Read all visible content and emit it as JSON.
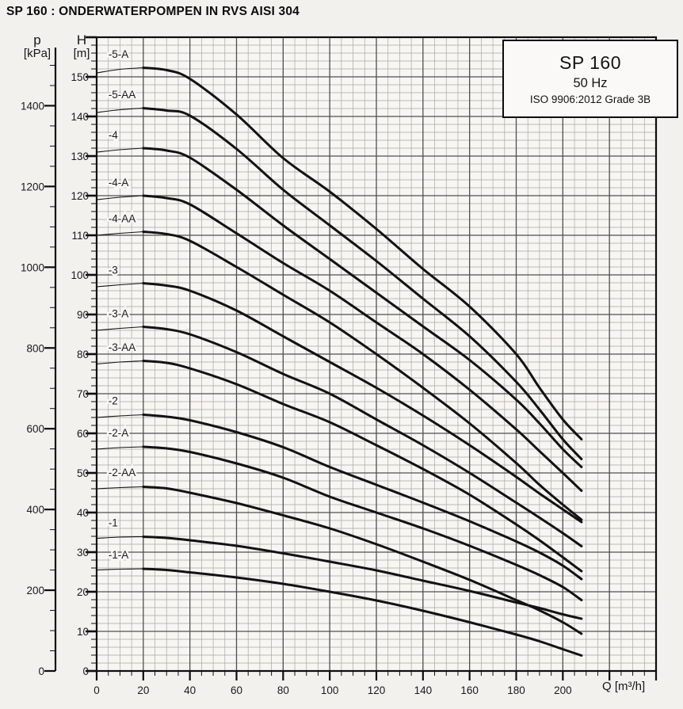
{
  "page": {
    "title": "SP 160 : ONDERWATERPOMPEN IN RVS AISI 304"
  },
  "info_box": {
    "model": "SP 160",
    "frequency": "50 Hz",
    "standard": "ISO 9906:2012 Grade 3B"
  },
  "colors": {
    "curve": "#121212",
    "grid_major": "#4f4f4f",
    "grid_minor": "#a9a7a3",
    "axis": "#0d0d0d",
    "tick_text": "#1a1a1a",
    "plot_bg": "#f7f6f3"
  },
  "chart_data": {
    "type": "line",
    "title": "SP 160 : ONDERWATERPOMPEN IN RVS AISI 304",
    "xlabel": "Q [m³/h]",
    "x_axis": {
      "min": 0,
      "max": 240,
      "major": 20,
      "minor": 5,
      "tick_label_max": 200,
      "label": "Q [m³/h]"
    },
    "h_axis": {
      "title_lines": [
        "H",
        "[m]"
      ],
      "min": 0,
      "max": 160,
      "major": 10,
      "minor": 2,
      "tick_label_max": 150
    },
    "p_axis": {
      "title_lines": [
        "p",
        "[kPa]"
      ],
      "kpa_per_m": 9.81,
      "major": 200,
      "minor": 50,
      "tick_label_max": 1400
    },
    "legend": [
      "SP 160",
      "50 Hz",
      "ISO 9906:2012 Grade 3B"
    ],
    "grid": "on",
    "series": [
      {
        "name": "-5-A",
        "label_at": [
          5,
          154.8
        ],
        "points": [
          [
            0,
            151
          ],
          [
            10,
            151.9
          ],
          [
            20,
            152.3
          ],
          [
            30,
            151.7
          ],
          [
            40,
            149.5
          ],
          [
            60,
            140.5
          ],
          [
            80,
            129.5
          ],
          [
            100,
            121
          ],
          [
            120,
            111.6
          ],
          [
            140,
            101.5
          ],
          [
            160,
            92
          ],
          [
            180,
            80
          ],
          [
            190,
            71.5
          ],
          [
            200,
            63.5
          ],
          [
            208,
            58.5
          ]
        ]
      },
      {
        "name": "-5-AA",
        "label_at": [
          5,
          144.6
        ],
        "points": [
          [
            0,
            141
          ],
          [
            10,
            141.7
          ],
          [
            20,
            142.1
          ],
          [
            30,
            141.5
          ],
          [
            40,
            140.2
          ],
          [
            60,
            131.8
          ],
          [
            80,
            121.5
          ],
          [
            100,
            112.5
          ],
          [
            120,
            103.5
          ],
          [
            140,
            94
          ],
          [
            160,
            84.5
          ],
          [
            180,
            73
          ],
          [
            190,
            66
          ],
          [
            200,
            58.5
          ],
          [
            208,
            53.5
          ]
        ]
      },
      {
        "name": "-4",
        "label_at": [
          5,
          134.4
        ],
        "points": [
          [
            0,
            131
          ],
          [
            10,
            131.6
          ],
          [
            20,
            132
          ],
          [
            30,
            131.4
          ],
          [
            40,
            129.6
          ],
          [
            60,
            121.5
          ],
          [
            80,
            112.5
          ],
          [
            100,
            104
          ],
          [
            120,
            95.5
          ],
          [
            140,
            87
          ],
          [
            160,
            78.5
          ],
          [
            180,
            68.5
          ],
          [
            190,
            62.5
          ],
          [
            200,
            56
          ],
          [
            208,
            51.5
          ]
        ]
      },
      {
        "name": "-4-A",
        "label_at": [
          5,
          122.4
        ],
        "points": [
          [
            0,
            119
          ],
          [
            10,
            119.6
          ],
          [
            20,
            120
          ],
          [
            30,
            119.4
          ],
          [
            40,
            117.8
          ],
          [
            60,
            110.5
          ],
          [
            80,
            103
          ],
          [
            100,
            96
          ],
          [
            120,
            88
          ],
          [
            140,
            80
          ],
          [
            160,
            71
          ],
          [
            180,
            61
          ],
          [
            190,
            55.5
          ],
          [
            200,
            50
          ],
          [
            208,
            45.5
          ]
        ]
      },
      {
        "name": "-4-AA",
        "label_at": [
          5,
          113.3
        ],
        "points": [
          [
            0,
            110
          ],
          [
            10,
            110.5
          ],
          [
            20,
            110.9
          ],
          [
            30,
            110.3
          ],
          [
            40,
            108.6
          ],
          [
            60,
            102
          ],
          [
            80,
            95
          ],
          [
            100,
            88
          ],
          [
            120,
            80
          ],
          [
            140,
            71.5
          ],
          [
            160,
            62.5
          ],
          [
            180,
            52.5
          ],
          [
            190,
            47
          ],
          [
            200,
            42
          ],
          [
            208,
            38.2
          ]
        ]
      },
      {
        "name": "-3",
        "label_at": [
          5,
          100.3
        ],
        "points": [
          [
            0,
            97
          ],
          [
            10,
            97.5
          ],
          [
            20,
            97.9
          ],
          [
            30,
            97.3
          ],
          [
            40,
            96
          ],
          [
            60,
            91
          ],
          [
            80,
            84.5
          ],
          [
            100,
            78
          ],
          [
            120,
            71.5
          ],
          [
            140,
            64.5
          ],
          [
            160,
            57
          ],
          [
            180,
            49
          ],
          [
            190,
            44.8
          ],
          [
            200,
            40.8
          ],
          [
            208,
            37.6
          ]
        ]
      },
      {
        "name": "-3-A",
        "label_at": [
          5,
          89.3
        ],
        "points": [
          [
            0,
            86
          ],
          [
            10,
            86.5
          ],
          [
            20,
            86.9
          ],
          [
            30,
            86.3
          ],
          [
            40,
            85
          ],
          [
            60,
            80.5
          ],
          [
            80,
            75
          ],
          [
            100,
            70
          ],
          [
            120,
            63.5
          ],
          [
            140,
            57
          ],
          [
            160,
            50
          ],
          [
            180,
            42.5
          ],
          [
            190,
            38.7
          ],
          [
            200,
            34.8
          ],
          [
            208,
            31.5
          ]
        ]
      },
      {
        "name": "-3-AA",
        "label_at": [
          5,
          80.8
        ],
        "points": [
          [
            0,
            77.5
          ],
          [
            10,
            78
          ],
          [
            20,
            78.3
          ],
          [
            30,
            77.8
          ],
          [
            40,
            76.4
          ],
          [
            60,
            72.4
          ],
          [
            80,
            67.4
          ],
          [
            100,
            62.8
          ],
          [
            120,
            57
          ],
          [
            140,
            51
          ],
          [
            160,
            44.5
          ],
          [
            180,
            37
          ],
          [
            190,
            33
          ],
          [
            200,
            28.7
          ],
          [
            208,
            25.2
          ]
        ]
      },
      {
        "name": "-2",
        "label_at": [
          5,
          67.3
        ],
        "points": [
          [
            0,
            64
          ],
          [
            10,
            64.4
          ],
          [
            20,
            64.7
          ],
          [
            30,
            64.2
          ],
          [
            40,
            63.3
          ],
          [
            60,
            60.3
          ],
          [
            80,
            56.5
          ],
          [
            100,
            51.5
          ],
          [
            120,
            47
          ],
          [
            140,
            42.5
          ],
          [
            160,
            37.8
          ],
          [
            180,
            32.7
          ],
          [
            190,
            29.9
          ],
          [
            200,
            26.6
          ],
          [
            208,
            23.2
          ]
        ]
      },
      {
        "name": "-2-A",
        "label_at": [
          5,
          59.2
        ],
        "points": [
          [
            0,
            56
          ],
          [
            10,
            56.4
          ],
          [
            20,
            56.6
          ],
          [
            30,
            56.2
          ],
          [
            40,
            55.3
          ],
          [
            60,
            52.4
          ],
          [
            80,
            48.8
          ],
          [
            100,
            44
          ],
          [
            120,
            40
          ],
          [
            140,
            36
          ],
          [
            160,
            31.6
          ],
          [
            180,
            26.8
          ],
          [
            190,
            24.2
          ],
          [
            200,
            21.2
          ],
          [
            208,
            17.9
          ]
        ]
      },
      {
        "name": "-2-AA",
        "label_at": [
          5,
          49.2
        ],
        "points": [
          [
            0,
            46
          ],
          [
            10,
            46.3
          ],
          [
            20,
            46.5
          ],
          [
            30,
            46.1
          ],
          [
            40,
            45
          ],
          [
            60,
            42.4
          ],
          [
            80,
            39.3
          ],
          [
            100,
            36
          ],
          [
            120,
            32
          ],
          [
            140,
            27.6
          ],
          [
            160,
            23
          ],
          [
            180,
            17.9
          ],
          [
            190,
            15.3
          ],
          [
            200,
            12.3
          ],
          [
            208,
            9.4
          ]
        ]
      },
      {
        "name": "-1",
        "label_at": [
          5,
          36.5
        ],
        "points": [
          [
            0,
            33.5
          ],
          [
            10,
            33.8
          ],
          [
            20,
            33.9
          ],
          [
            30,
            33.6
          ],
          [
            40,
            33
          ],
          [
            60,
            31.6
          ],
          [
            80,
            29.7
          ],
          [
            100,
            27.6
          ],
          [
            120,
            25.4
          ],
          [
            140,
            22.8
          ],
          [
            160,
            20.2
          ],
          [
            180,
            17.3
          ],
          [
            190,
            15.9
          ],
          [
            200,
            14.3
          ],
          [
            208,
            13.2
          ]
        ]
      },
      {
        "name": "-1-A",
        "label_at": [
          5,
          28.4
        ],
        "points": [
          [
            0,
            25.5
          ],
          [
            10,
            25.7
          ],
          [
            20,
            25.8
          ],
          [
            30,
            25.5
          ],
          [
            40,
            24.9
          ],
          [
            60,
            23.6
          ],
          [
            80,
            22
          ],
          [
            100,
            20
          ],
          [
            120,
            17.8
          ],
          [
            140,
            15.2
          ],
          [
            160,
            12.3
          ],
          [
            180,
            9.2
          ],
          [
            190,
            7.5
          ],
          [
            200,
            5.5
          ],
          [
            208,
            3.9
          ]
        ]
      }
    ]
  }
}
